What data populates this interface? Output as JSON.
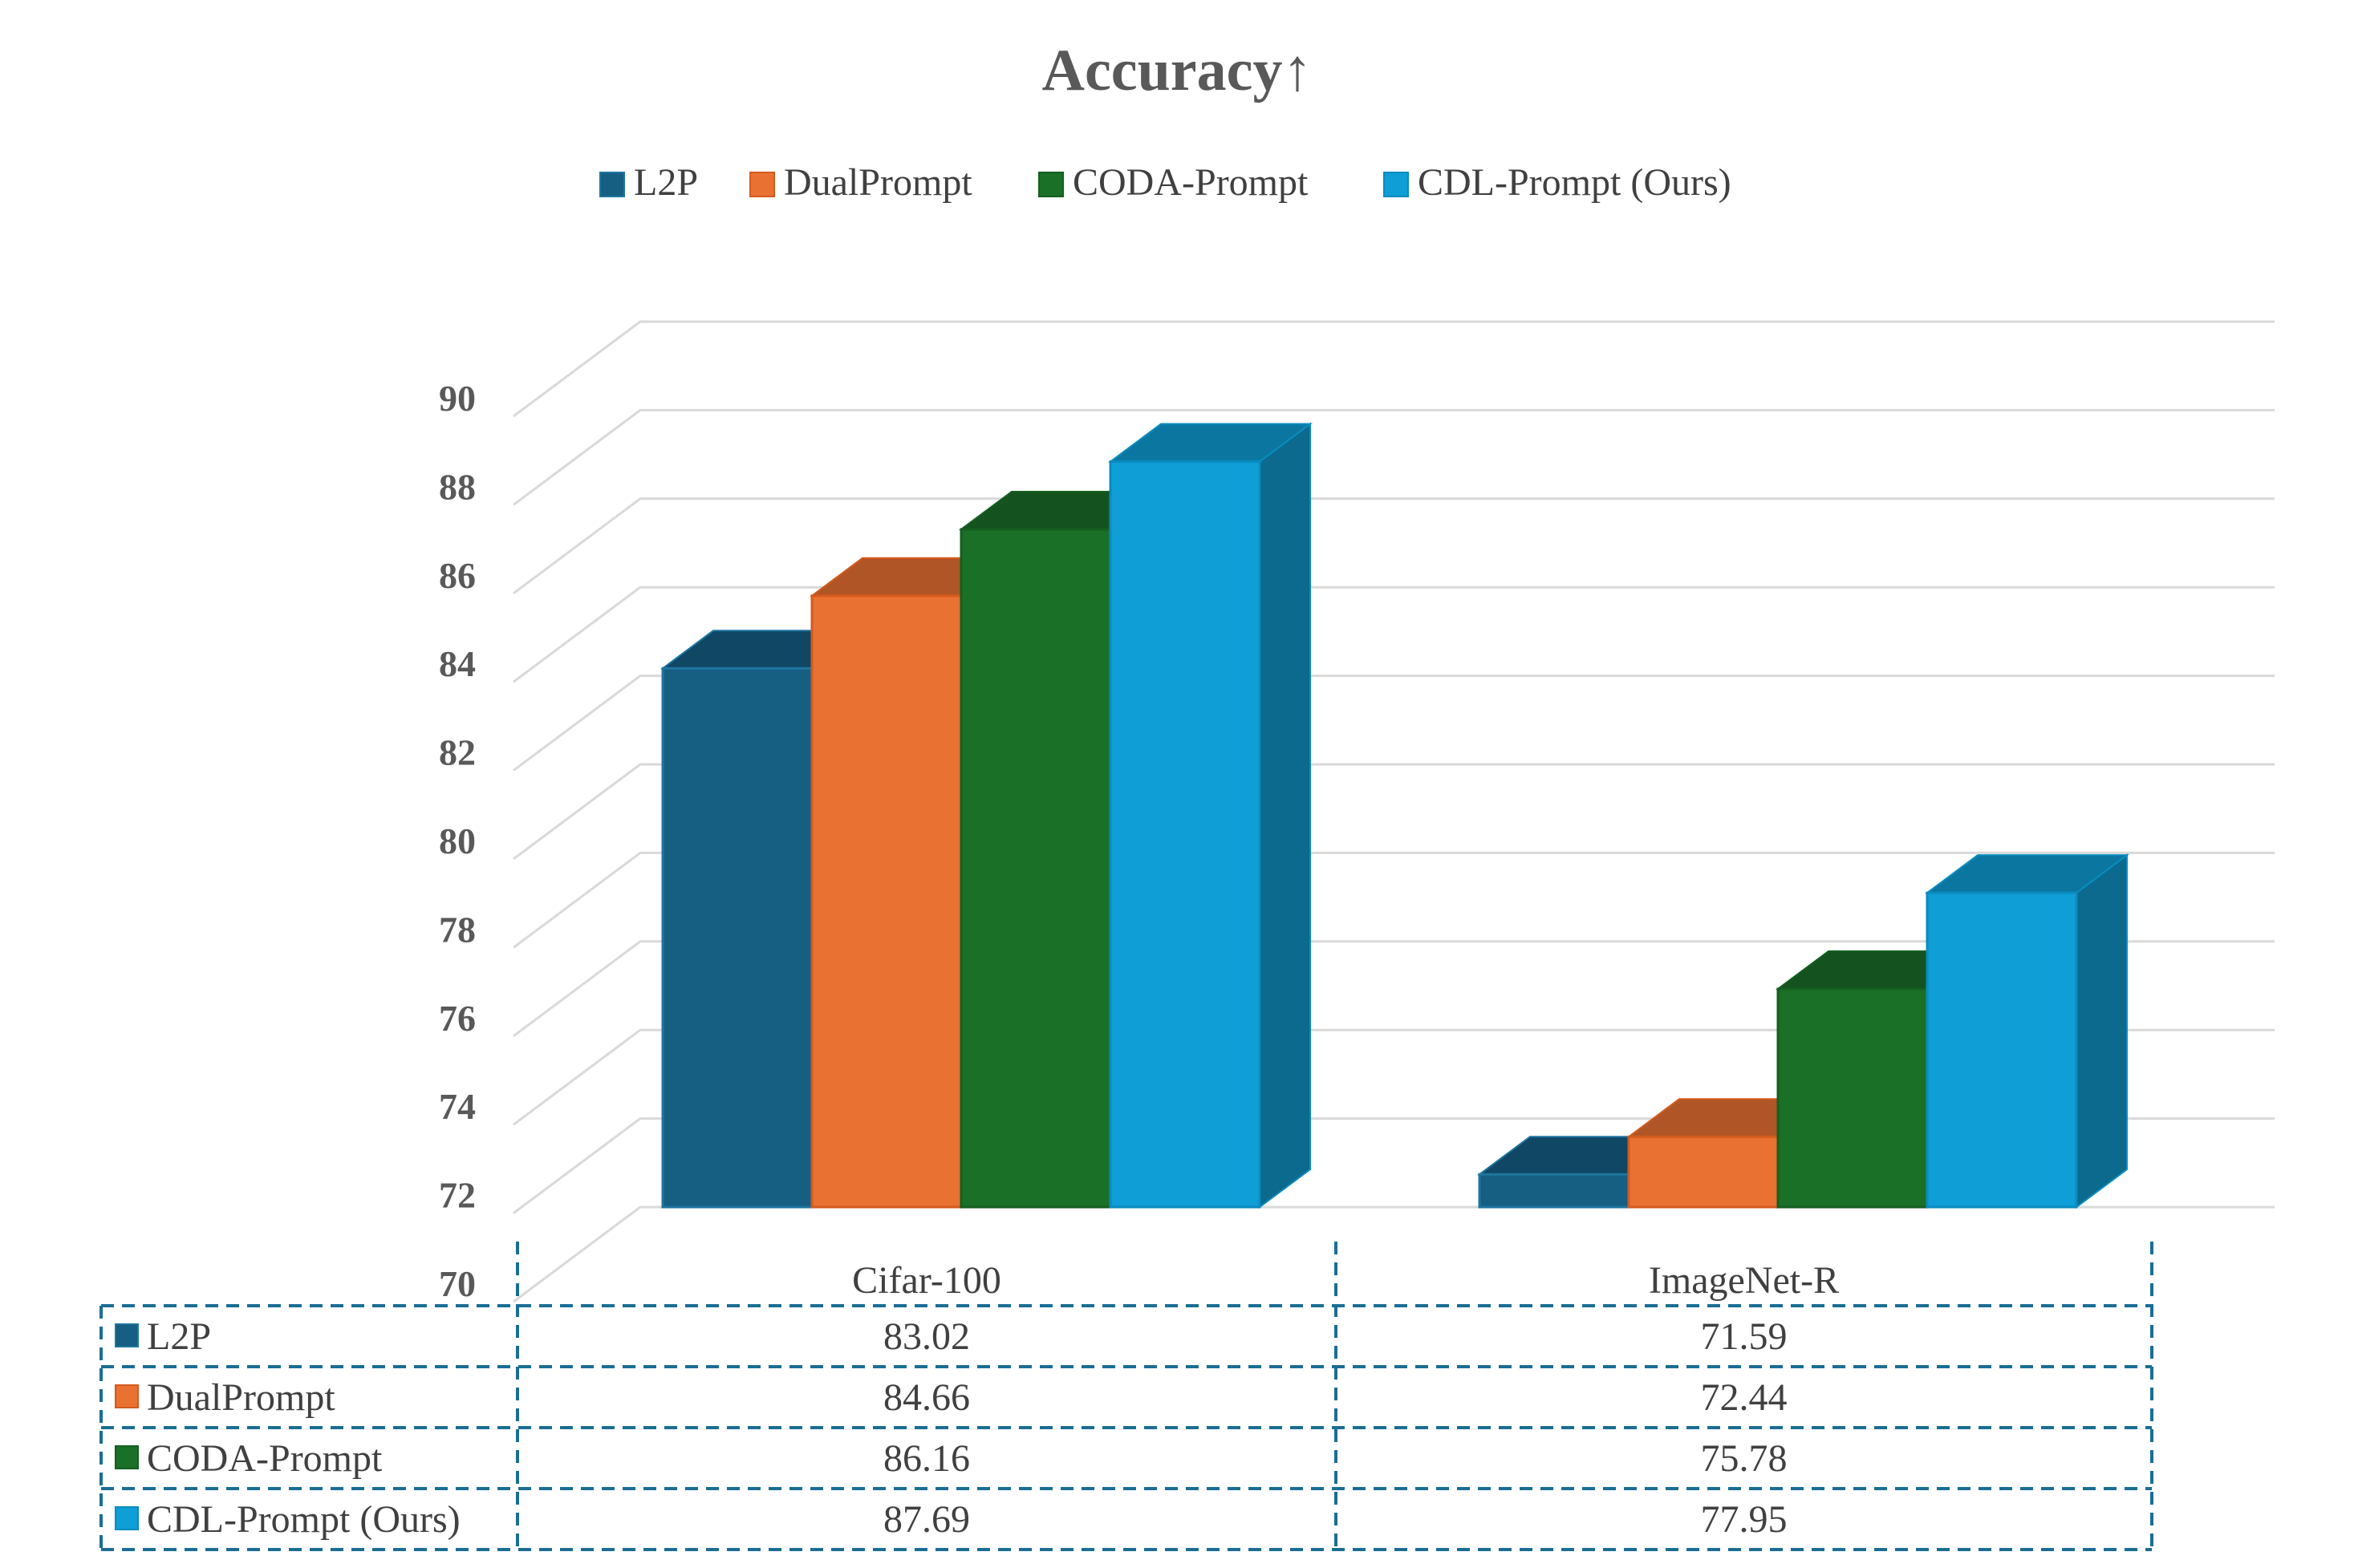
{
  "chart_data": {
    "type": "bar",
    "title": "Accuracy↑",
    "categories": [
      "Cifar-100",
      "ImageNet-R"
    ],
    "series": [
      {
        "name": "L2P",
        "values": [
          83.02,
          71.59
        ],
        "color": "#165F82",
        "top_color": "#0F4764",
        "side_color": "#0F4764",
        "border": "#1E75A0"
      },
      {
        "name": "DualPrompt",
        "values": [
          84.66,
          72.44
        ],
        "color": "#E97132",
        "top_color": "#B05526",
        "side_color": "#B05526",
        "border": "#D45A1E"
      },
      {
        "name": "CODA-Prompt",
        "values": [
          86.16,
          75.78
        ],
        "color": "#1B7028",
        "top_color": "#145320",
        "side_color": "#145320",
        "border": "#145F20"
      },
      {
        "name": "CDL-Prompt (Ours)",
        "values": [
          87.69,
          77.95
        ],
        "color": "#0F9ED5",
        "top_color": "#0B77A1",
        "side_color": "#0B6A8E",
        "border": "#0A8CC0"
      }
    ],
    "yticks": [
      70,
      72,
      74,
      76,
      78,
      80,
      82,
      84,
      86,
      88,
      90
    ],
    "ylim": [
      70,
      90
    ],
    "grid": true,
    "legend_position": "top",
    "data_table": true,
    "table_values": [
      [
        "83.02",
        "71.59"
      ],
      [
        "84.66",
        "72.44"
      ],
      [
        "86.16",
        "75.78"
      ],
      [
        "87.69",
        "77.95"
      ]
    ],
    "xlabel": "",
    "ylabel": ""
  }
}
